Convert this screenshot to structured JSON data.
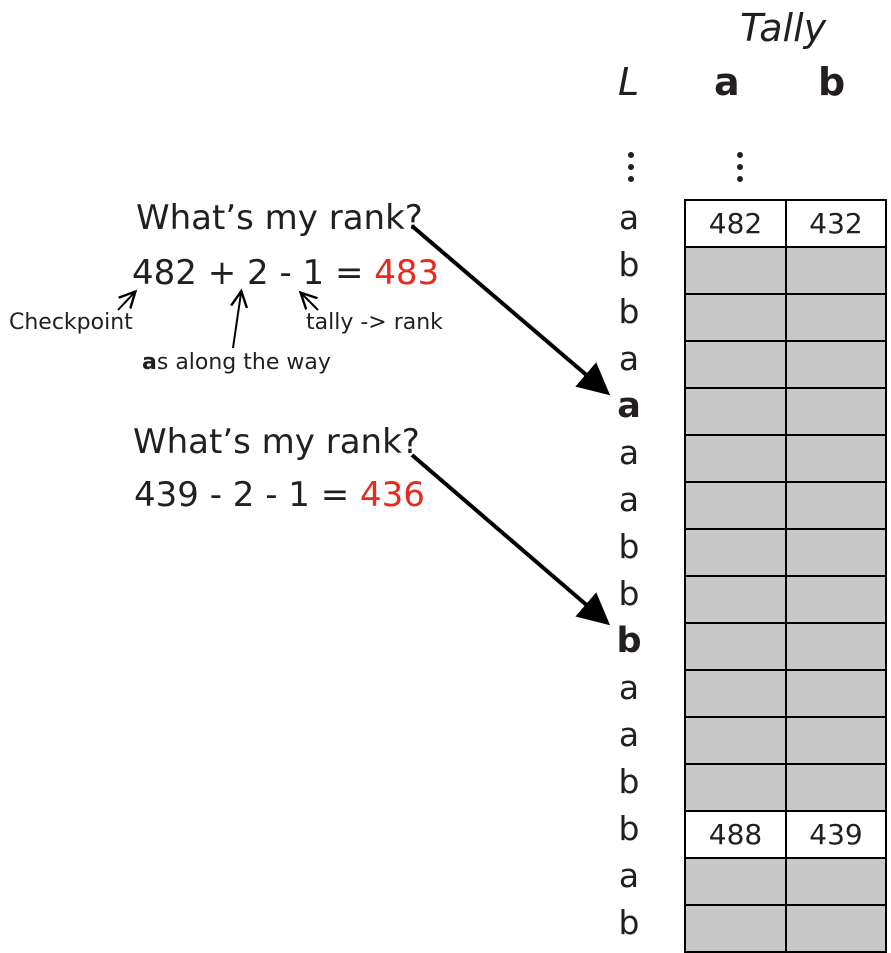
{
  "header": {
    "title": "Tally",
    "col_L": "L",
    "col_a": "a",
    "col_b": "b"
  },
  "L_column": [
    "a",
    "b",
    "b",
    "a",
    "a",
    "a",
    "a",
    "b",
    "b",
    "b",
    "a",
    "a",
    "b",
    "b",
    "a",
    "b"
  ],
  "L_bold_rows": [
    4,
    9
  ],
  "tally_rows": [
    {
      "a": "482",
      "b": "432",
      "checkpoint": true
    },
    {
      "checkpoint": false
    },
    {
      "checkpoint": false
    },
    {
      "checkpoint": false
    },
    {
      "checkpoint": false
    },
    {
      "checkpoint": false
    },
    {
      "checkpoint": false
    },
    {
      "checkpoint": false
    },
    {
      "checkpoint": false
    },
    {
      "checkpoint": false
    },
    {
      "checkpoint": false
    },
    {
      "checkpoint": false
    },
    {
      "checkpoint": false
    },
    {
      "a": "488",
      "b": "439",
      "checkpoint": true
    },
    {
      "checkpoint": false
    },
    {
      "checkpoint": false
    }
  ],
  "example1": {
    "question": "What’s my rank?",
    "eq_part": "482 + 2 - 1 = ",
    "result": "483",
    "annotation_checkpoint": "Checkpoint",
    "annotation_as_bold": "a",
    "annotation_as_rest": "s along the way",
    "annotation_tally": "tally -> rank"
  },
  "example2": {
    "question": "What’s my rank?",
    "eq_part": "439 - 2 - 1 = ",
    "result": "436"
  },
  "colors": {
    "result": "#e8291c",
    "cell_fill": "#c8c8c8",
    "text": "#231f20"
  }
}
